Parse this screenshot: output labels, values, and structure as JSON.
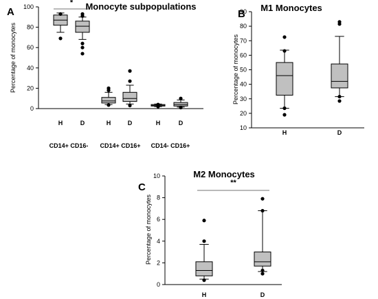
{
  "chart_data": [
    {
      "id": "A",
      "panel": "A",
      "type": "box",
      "title": "Monocyte subpopulations",
      "ylabel": "Percentage of monocytes",
      "ylim": [
        0,
        100
      ],
      "yticks": [
        0,
        20,
        40,
        60,
        80,
        100
      ],
      "categories": [
        "H",
        "D",
        "H",
        "D",
        "H",
        "D"
      ],
      "groups": [
        {
          "label": "CD14+ CD16-"
        },
        {
          "label": "CD14+ CD16+"
        },
        {
          "label": "CD14- CD16+"
        }
      ],
      "boxes": [
        {
          "q1": 82,
          "median": 87,
          "q3": 92,
          "whisker_low": 75,
          "whisker_high": 94,
          "outliers": [
            93,
            69
          ]
        },
        {
          "q1": 75,
          "median": 81,
          "q3": 86,
          "whisker_low": 68,
          "whisker_high": 90,
          "outliers": [
            93,
            91,
            64,
            60,
            54
          ]
        },
        {
          "q1": 5.5,
          "median": 7.5,
          "q3": 11,
          "whisker_low": 4,
          "whisker_high": 16,
          "outliers": [
            20,
            18,
            3.5
          ]
        },
        {
          "q1": 7,
          "median": 10,
          "q3": 16,
          "whisker_low": 4.5,
          "whisker_high": 23,
          "outliers": [
            37,
            27,
            3
          ]
        },
        {
          "q1": 2.5,
          "median": 3.2,
          "q3": 4,
          "whisker_low": 2,
          "whisker_high": 4.5,
          "outliers": [
            4,
            2
          ]
        },
        {
          "q1": 2.5,
          "median": 4,
          "q3": 6,
          "whisker_low": 1.5,
          "whisker_high": 8.5,
          "outliers": [
            10,
            1
          ]
        }
      ],
      "significance": [
        {
          "from": 0,
          "to": 1,
          "label": "*"
        }
      ]
    },
    {
      "id": "B",
      "panel": "B",
      "type": "box",
      "title": "M1 Monocytes",
      "ylabel": "Percentage of monocytes",
      "ylim": [
        10,
        90
      ],
      "yticks": [
        10,
        20,
        30,
        40,
        50,
        60,
        70,
        80,
        90
      ],
      "categories": [
        "H",
        "D"
      ],
      "boxes": [
        {
          "q1": 32.5,
          "median": 46,
          "q3": 55,
          "whisker_low": 23.5,
          "whisker_high": 63.5,
          "outliers": [
            72.5,
            63,
            23.5,
            19
          ]
        },
        {
          "q1": 37.5,
          "median": 42,
          "q3": 54,
          "whisker_low": 31.5,
          "whisker_high": 73,
          "outliers": [
            83,
            81.5,
            31.5,
            28.5
          ]
        }
      ],
      "significance": []
    },
    {
      "id": "C",
      "panel": "C",
      "type": "box",
      "title": "M2 Monocytes",
      "ylabel": "Percentage of monocytes",
      "ylim": [
        0,
        10
      ],
      "yticks": [
        0,
        2,
        4,
        6,
        8,
        10
      ],
      "categories": [
        "H",
        "D"
      ],
      "boxes": [
        {
          "q1": 0.8,
          "median": 1.3,
          "q3": 2.1,
          "whisker_low": 0.5,
          "whisker_high": 3.7,
          "outliers": [
            5.9,
            4.0,
            0.4
          ]
        },
        {
          "q1": 1.7,
          "median": 2.1,
          "q3": 3.0,
          "whisker_low": 1.2,
          "whisker_high": 6.8,
          "outliers": [
            7.9,
            6.8,
            1.3,
            1.0
          ]
        }
      ],
      "significance": [
        {
          "from": 0,
          "to": 1,
          "label": "**"
        }
      ]
    }
  ]
}
